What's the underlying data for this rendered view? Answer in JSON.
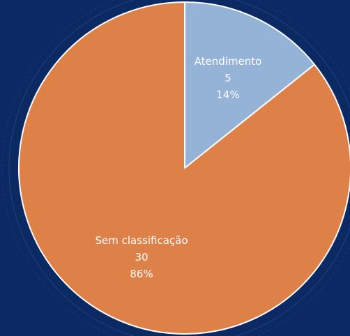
{
  "chart_data": {
    "type": "pie",
    "categories": [
      "Atendimento",
      "Sem classificação"
    ],
    "values": [
      5,
      30
    ],
    "percent_labels": [
      "14%",
      "86%"
    ],
    "colors": [
      "#95b3d7",
      "#dd8148"
    ]
  }
}
